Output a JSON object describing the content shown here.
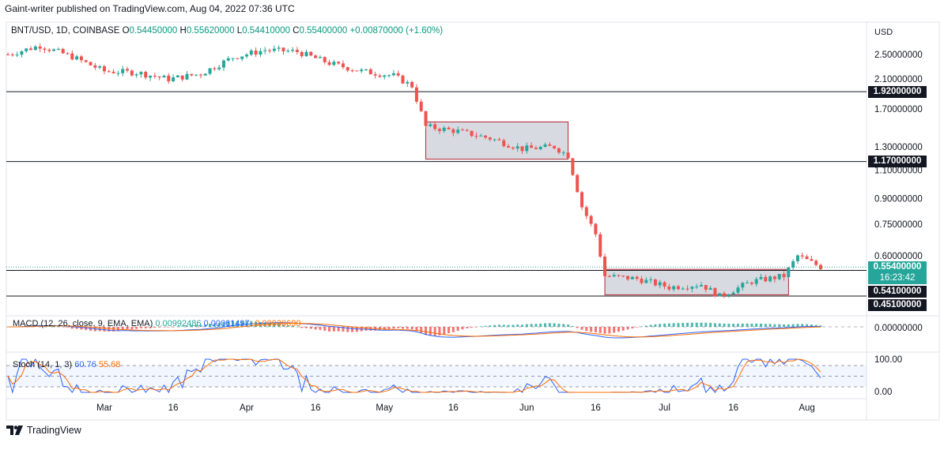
{
  "header": {
    "publisher": "Gaint-writer published on TradingView.com, Aug 04, 2022 07:36 UTC"
  },
  "legend": {
    "symbol": "BNT/USD, 1D, COINBASE",
    "o_label": "O",
    "o": "0.54450000",
    "h_label": "H",
    "h": "0.55620000",
    "l_label": "L",
    "l": "0.54410000",
    "c_label": "C",
    "c": "0.55400000",
    "change": "+0.00870000 (+1.60%)"
  },
  "price_axis": {
    "currency": "USD"
  },
  "price_tags": {
    "level_high": "1.92000000",
    "level_mid": "1.17000000",
    "current": "0.55400000",
    "countdown": "16:23:42",
    "level_low": "0.54100000",
    "level_bottom": "0.45100000"
  },
  "macd": {
    "label": "MACD (12, 26, close, 9, EMA, EMA)",
    "hist": "0.00992486",
    "macd": "0.00061497",
    "signal": "-0.00930690",
    "axis_label": "0.00000000"
  },
  "stoch": {
    "label": "Stoch (14, 1, 3)",
    "k": "60.76",
    "d": "55.68",
    "axis_top": "100.00",
    "axis_bottom": "0.00"
  },
  "footer": {
    "brand": "TradingView"
  },
  "colors": {
    "up": "#26a69a",
    "down": "#ef5350",
    "macd": "#2962ff",
    "signal": "#ff6d00",
    "zone_fill": "#d1d4dc",
    "zone_border": "#b22833"
  },
  "chart_data": {
    "type": "candlestick",
    "title": "BNT/USD, 1D, COINBASE",
    "y_scale": "log",
    "y_tick_labels": [
      "2.50000000",
      "2.10000000",
      "1.70000000",
      "1.30000000",
      "1.10000000",
      "0.90000000",
      "0.75000000",
      "0.60000000"
    ],
    "y_ticks": [
      2.5,
      2.1,
      1.7,
      1.3,
      1.1,
      0.9,
      0.75,
      0.6
    ],
    "x_tick_labels": [
      "Mar",
      "16",
      "Apr",
      "16",
      "May",
      "16",
      "Jun",
      "16",
      "Jul",
      "16",
      "Aug"
    ],
    "x_tick_dates": [
      "2022-03-01",
      "2022-03-16",
      "2022-04-01",
      "2022-04-16",
      "2022-05-01",
      "2022-05-16",
      "2022-06-01",
      "2022-06-16",
      "2022-07-01",
      "2022-07-16",
      "2022-08-01"
    ],
    "horizontal_levels": [
      1.92,
      1.17,
      0.541,
      0.451
    ],
    "zones": [
      {
        "from": "2022-05-10",
        "to": "2022-06-10",
        "low": 1.19,
        "high": 1.55
      },
      {
        "from": "2022-06-18",
        "to": "2022-07-28",
        "low": 0.455,
        "high": 0.545
      }
    ],
    "close_series": [
      {
        "date": "2022-02-08",
        "close": 2.5
      },
      {
        "date": "2022-02-15",
        "close": 2.66
      },
      {
        "date": "2022-02-22",
        "close": 2.46
      },
      {
        "date": "2022-03-01",
        "close": 2.22
      },
      {
        "date": "2022-03-08",
        "close": 2.2
      },
      {
        "date": "2022-03-15",
        "close": 2.1
      },
      {
        "date": "2022-03-22",
        "close": 2.18
      },
      {
        "date": "2022-03-29",
        "close": 2.45
      },
      {
        "date": "2022-04-05",
        "close": 2.58
      },
      {
        "date": "2022-04-12",
        "close": 2.55
      },
      {
        "date": "2022-04-19",
        "close": 2.35
      },
      {
        "date": "2022-04-26",
        "close": 2.22
      },
      {
        "date": "2022-05-03",
        "close": 2.15
      },
      {
        "date": "2022-05-07",
        "close": 2.0
      },
      {
        "date": "2022-05-10",
        "close": 1.5
      },
      {
        "date": "2022-05-17",
        "close": 1.45
      },
      {
        "date": "2022-05-24",
        "close": 1.38
      },
      {
        "date": "2022-05-31",
        "close": 1.28
      },
      {
        "date": "2022-06-07",
        "close": 1.3
      },
      {
        "date": "2022-06-10",
        "close": 1.22
      },
      {
        "date": "2022-06-13",
        "close": 0.85
      },
      {
        "date": "2022-06-16",
        "close": 0.7
      },
      {
        "date": "2022-06-18",
        "close": 0.52
      },
      {
        "date": "2022-06-25",
        "close": 0.51
      },
      {
        "date": "2022-07-02",
        "close": 0.48
      },
      {
        "date": "2022-07-09",
        "close": 0.49
      },
      {
        "date": "2022-07-13",
        "close": 0.45
      },
      {
        "date": "2022-07-20",
        "close": 0.5
      },
      {
        "date": "2022-07-27",
        "close": 0.52
      },
      {
        "date": "2022-07-30",
        "close": 0.6
      },
      {
        "date": "2022-08-04",
        "close": 0.554
      }
    ]
  }
}
